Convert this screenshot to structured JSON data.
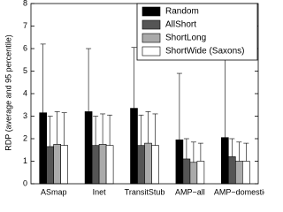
{
  "chart_data": {
    "type": "bar",
    "y_label": "RDP (average and 95 percentile)",
    "categories": [
      "ASmap",
      "Inet",
      "TransitStub",
      "AMP−all",
      "AMP−domestic"
    ],
    "series": [
      {
        "name": "Random",
        "color": "#000000",
        "values": [
          3.15,
          3.2,
          3.35,
          1.95,
          2.05
        ],
        "upper": [
          6.2,
          6.0,
          6.05,
          4.9,
          5.6
        ]
      },
      {
        "name": "AllShort",
        "color": "#555555",
        "values": [
          1.65,
          1.7,
          1.7,
          1.1,
          1.2
        ],
        "upper": [
          3.0,
          3.0,
          3.05,
          2.0,
          2.0
        ]
      },
      {
        "name": "ShortLong",
        "color": "#aaaaaa",
        "values": [
          1.75,
          1.75,
          1.8,
          0.95,
          1.0
        ],
        "upper": [
          3.2,
          3.1,
          3.2,
          1.85,
          1.85
        ]
      },
      {
        "name": "ShortWide (Saxons)",
        "color": "#ffffff",
        "values": [
          1.7,
          1.7,
          1.7,
          1.0,
          1.0
        ],
        "upper": [
          3.15,
          3.05,
          3.1,
          1.8,
          1.8
        ]
      }
    ],
    "ylim": [
      0,
      8
    ],
    "yticks": [
      0,
      1,
      2,
      3,
      4,
      5,
      6,
      7,
      8
    ],
    "grid": false,
    "legend": "upper right"
  }
}
